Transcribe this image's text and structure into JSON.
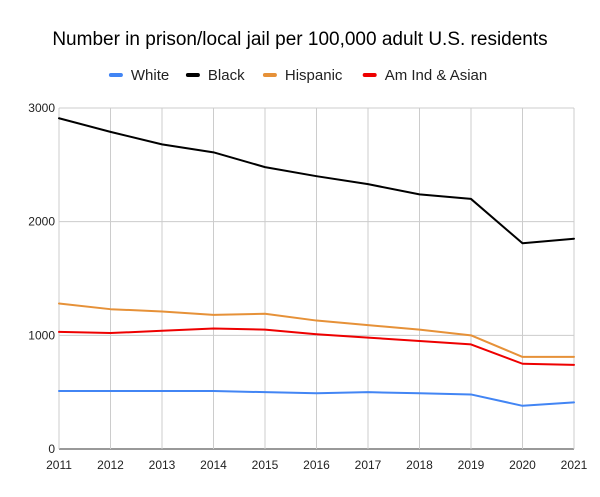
{
  "chart_data": {
    "type": "line",
    "title": "Number in prison/local jail per 100,000 adult U.S. residents",
    "xlabel": "",
    "ylabel": "",
    "x": [
      "2011",
      "2012",
      "2013",
      "2014",
      "2015",
      "2016",
      "2017",
      "2018",
      "2019",
      "2020",
      "2021"
    ],
    "ylim": [
      0,
      3000
    ],
    "yticks": [
      "0",
      "1000",
      "2000",
      "3000"
    ],
    "grid": true,
    "legend_position": "top",
    "series": [
      {
        "name": "White",
        "color": "#4285f4",
        "values": [
          510,
          510,
          510,
          510,
          500,
          490,
          500,
          490,
          480,
          380,
          410
        ]
      },
      {
        "name": "Black",
        "color": "#000000",
        "values": [
          2910,
          2790,
          2680,
          2610,
          2480,
          2400,
          2330,
          2240,
          2200,
          1810,
          1850
        ]
      },
      {
        "name": "Hispanic",
        "color": "#e69138",
        "values": [
          1280,
          1230,
          1210,
          1180,
          1190,
          1130,
          1090,
          1050,
          1000,
          810,
          810
        ]
      },
      {
        "name": "Am Ind & Asian",
        "color": "#ee0000",
        "values": [
          1030,
          1020,
          1040,
          1060,
          1050,
          1010,
          980,
          950,
          920,
          750,
          740
        ]
      }
    ]
  }
}
